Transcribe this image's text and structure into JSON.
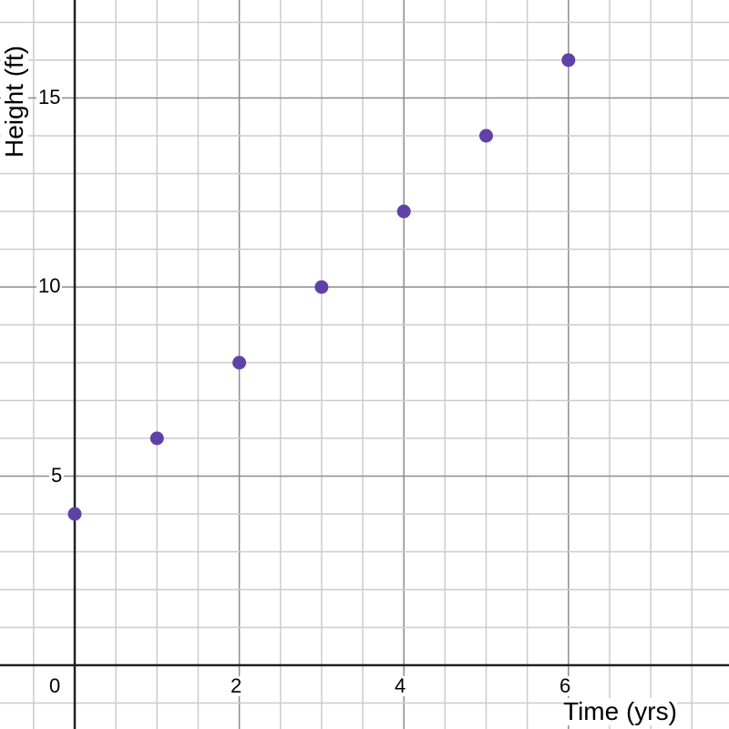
{
  "chart_data": {
    "type": "scatter",
    "title": "",
    "xlabel": "Time (yrs)",
    "ylabel": "Height (ft)",
    "x": [
      0,
      1,
      2,
      3,
      4,
      5,
      6
    ],
    "series": [
      {
        "name": "Height",
        "values": [
          4,
          6,
          8,
          10,
          12,
          14,
          16
        ],
        "color": "#6042a6"
      }
    ],
    "xlim": [
      -0.9,
      7.95
    ],
    "ylim": [
      -1.7,
      17.6
    ],
    "x_ticks": [
      "0",
      "2",
      "4",
      "6"
    ],
    "y_ticks": [
      "5",
      "10",
      "15"
    ],
    "grid": true,
    "legend": null
  },
  "axes": {
    "x_title": "Time (yrs)",
    "y_title": "Height (ft)",
    "x_tick_labels": {
      "t0": "0",
      "t2": "2",
      "t4": "4",
      "t6": "6"
    },
    "y_tick_labels": {
      "t5": "5",
      "t10": "10",
      "t15": "15"
    }
  },
  "colors": {
    "point": "#6042a6",
    "axis": "#222222",
    "major_grid": "#8c8c8c",
    "minor_grid": "#cccccc"
  }
}
